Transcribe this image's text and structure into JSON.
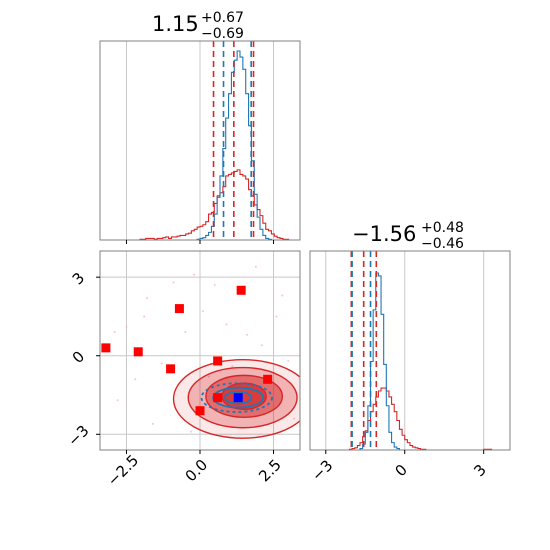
{
  "chart_data": {
    "type": "corner",
    "parameters": [
      {
        "median": "1.15",
        "err_plus": "+0.67",
        "err_minus": "−0.69"
      },
      {
        "median": "−1.56",
        "err_plus": "+0.48",
        "err_minus": "−0.46"
      }
    ],
    "axes": {
      "p1": {
        "range": [
          -3.4,
          3.4
        ],
        "ticks": [
          -2.5,
          0.0,
          2.5
        ],
        "tick_labels": [
          "−2.5",
          "0.0",
          "2.5"
        ]
      },
      "p2": {
        "range": [
          -3.6,
          4.0
        ],
        "ticks": [
          -3,
          0,
          3
        ],
        "tick_labels": [
          "−3",
          "0",
          "3"
        ]
      }
    },
    "grid": true,
    "colors": {
      "broad": "#d62728",
      "narrow": "#1f77b4",
      "square_red": "#ff0000",
      "square_blue": "#0000ff",
      "frame": "#808080"
    },
    "hist_p1": {
      "edges": [
        -3.4,
        3.4
      ],
      "red": [
        0,
        0,
        0,
        0,
        0,
        0,
        0,
        0,
        0,
        0,
        0,
        0,
        0,
        0,
        0.5,
        0.5,
        1,
        1,
        1,
        0.5,
        1,
        1,
        1.5,
        2,
        1,
        2,
        2,
        2.5,
        3,
        3,
        4,
        4.5,
        6,
        7,
        8.5,
        9,
        10,
        12,
        17,
        18,
        24,
        29,
        31,
        35,
        42,
        43,
        44,
        45,
        46,
        43,
        42,
        40,
        33,
        29,
        23,
        20,
        16,
        11,
        7,
        6,
        4,
        2.5,
        1.5,
        1,
        0.5,
        0.5,
        0,
        0,
        0,
        0
      ],
      "blue": [
        0,
        0,
        0,
        0,
        0,
        0,
        0,
        0,
        0,
        0,
        0,
        0,
        0,
        0,
        0,
        0,
        0,
        0,
        0,
        0,
        0,
        0,
        0,
        0,
        0,
        0,
        0,
        0,
        0,
        0,
        0,
        0,
        0,
        0,
        0.5,
        1,
        1.5,
        3,
        5,
        9,
        17,
        28,
        42,
        60,
        80,
        96,
        110,
        118,
        124,
        120,
        112,
        96,
        75,
        52,
        30,
        15,
        7,
        3,
        1,
        0.5,
        0,
        0,
        0,
        0,
        0,
        0,
        0,
        0,
        0,
        0
      ],
      "median": 1.15,
      "quantiles_red": [
        0.46,
        1.82
      ],
      "quantiles_blue": [
        0.8,
        1.74
      ]
    },
    "hist_p2": {
      "edges": [
        -3.6,
        4.0
      ],
      "red": [
        0,
        0,
        0,
        0,
        0,
        0,
        0,
        0,
        0,
        0,
        0,
        0,
        0,
        0,
        0,
        0.5,
        1,
        1.5,
        3,
        5,
        9,
        13,
        20,
        26,
        31,
        36,
        40,
        42,
        42,
        40,
        36,
        31,
        26,
        20,
        14,
        10,
        7,
        5,
        3,
        2,
        1.5,
        1,
        0.5,
        0.5,
        0,
        0,
        0,
        0,
        0,
        0,
        0,
        0,
        0,
        0,
        0,
        0,
        0,
        0,
        0,
        0,
        0,
        0,
        0,
        0,
        0,
        0,
        0.5,
        0.5,
        0.5,
        0,
        0,
        0,
        0,
        0,
        0,
        0
      ],
      "blue": [
        0,
        0,
        0,
        0,
        0,
        0,
        0,
        0,
        0,
        0,
        0,
        0,
        0,
        0,
        0,
        0,
        0,
        0,
        0,
        1,
        4,
        12,
        30,
        60,
        95,
        120,
        118,
        92,
        58,
        30,
        12,
        5,
        2,
        1,
        0,
        0,
        0,
        0,
        0,
        0,
        0,
        0,
        0,
        0,
        0,
        0,
        0,
        0,
        0,
        0,
        0,
        0,
        0,
        0,
        0,
        0,
        0,
        0,
        0,
        0,
        0,
        0,
        0,
        0,
        0,
        0,
        0,
        0,
        0,
        0,
        0,
        0,
        0,
        0,
        0,
        0
      ],
      "median": -1.56,
      "quantiles_red": [
        -2.03,
        -1.08
      ],
      "quantiles_blue": [
        -2.0,
        -1.3
      ]
    },
    "joint": {
      "red_contours": [
        {
          "cx": 1.45,
          "cy": -1.65,
          "rx": 2.35,
          "ry": 1.5
        },
        {
          "cx": 1.45,
          "cy": -1.6,
          "rx": 1.85,
          "ry": 1.15
        },
        {
          "cx": 1.5,
          "cy": -1.55,
          "rx": 1.3,
          "ry": 0.8
        },
        {
          "cx": 1.5,
          "cy": -1.55,
          "rx": 0.75,
          "ry": 0.5
        }
      ],
      "blue_contours": [
        {
          "cx": 1.25,
          "cy": -1.6,
          "rx": 1.2,
          "ry": 0.55
        },
        {
          "cx": 1.3,
          "cy": -1.6,
          "rx": 0.85,
          "ry": 0.38
        },
        {
          "cx": 1.3,
          "cy": -1.6,
          "rx": 0.45,
          "ry": 0.22
        }
      ],
      "red_squares": [
        [
          -3.2,
          0.3
        ],
        [
          -2.1,
          0.15
        ],
        [
          -0.7,
          1.8
        ],
        [
          1.4,
          2.5
        ],
        [
          -1.0,
          -0.5
        ],
        [
          0.6,
          -0.2
        ],
        [
          2.3,
          -0.9
        ],
        [
          0.6,
          -1.6
        ],
        [
          0.0,
          -2.1
        ]
      ],
      "blue_squares": [
        [
          1.3,
          -1.6
        ]
      ],
      "scatter": [
        [
          -2.5,
          1.1
        ],
        [
          -1.8,
          2.2
        ],
        [
          -0.2,
          3.1
        ],
        [
          0.5,
          2.7
        ],
        [
          1.9,
          3.4
        ],
        [
          2.6,
          1.5
        ],
        [
          -1.3,
          -0.3
        ],
        [
          -0.5,
          0.9
        ],
        [
          0.9,
          1.2
        ],
        [
          -2.8,
          -1.7
        ],
        [
          -1.6,
          -2.6
        ],
        [
          3.0,
          -0.2
        ],
        [
          3.2,
          -2.4
        ],
        [
          -0.9,
          2.8
        ],
        [
          2.1,
          0.4
        ],
        [
          -2.2,
          -0.9
        ],
        [
          0.3,
          -0.8
        ],
        [
          1.6,
          0.8
        ],
        [
          -0.3,
          -2.9
        ],
        [
          2.8,
          2.3
        ],
        [
          -1.9,
          1.5
        ],
        [
          0.1,
          1.7
        ],
        [
          1.1,
          -0.4
        ],
        [
          -2.9,
          0.9
        ]
      ]
    }
  }
}
